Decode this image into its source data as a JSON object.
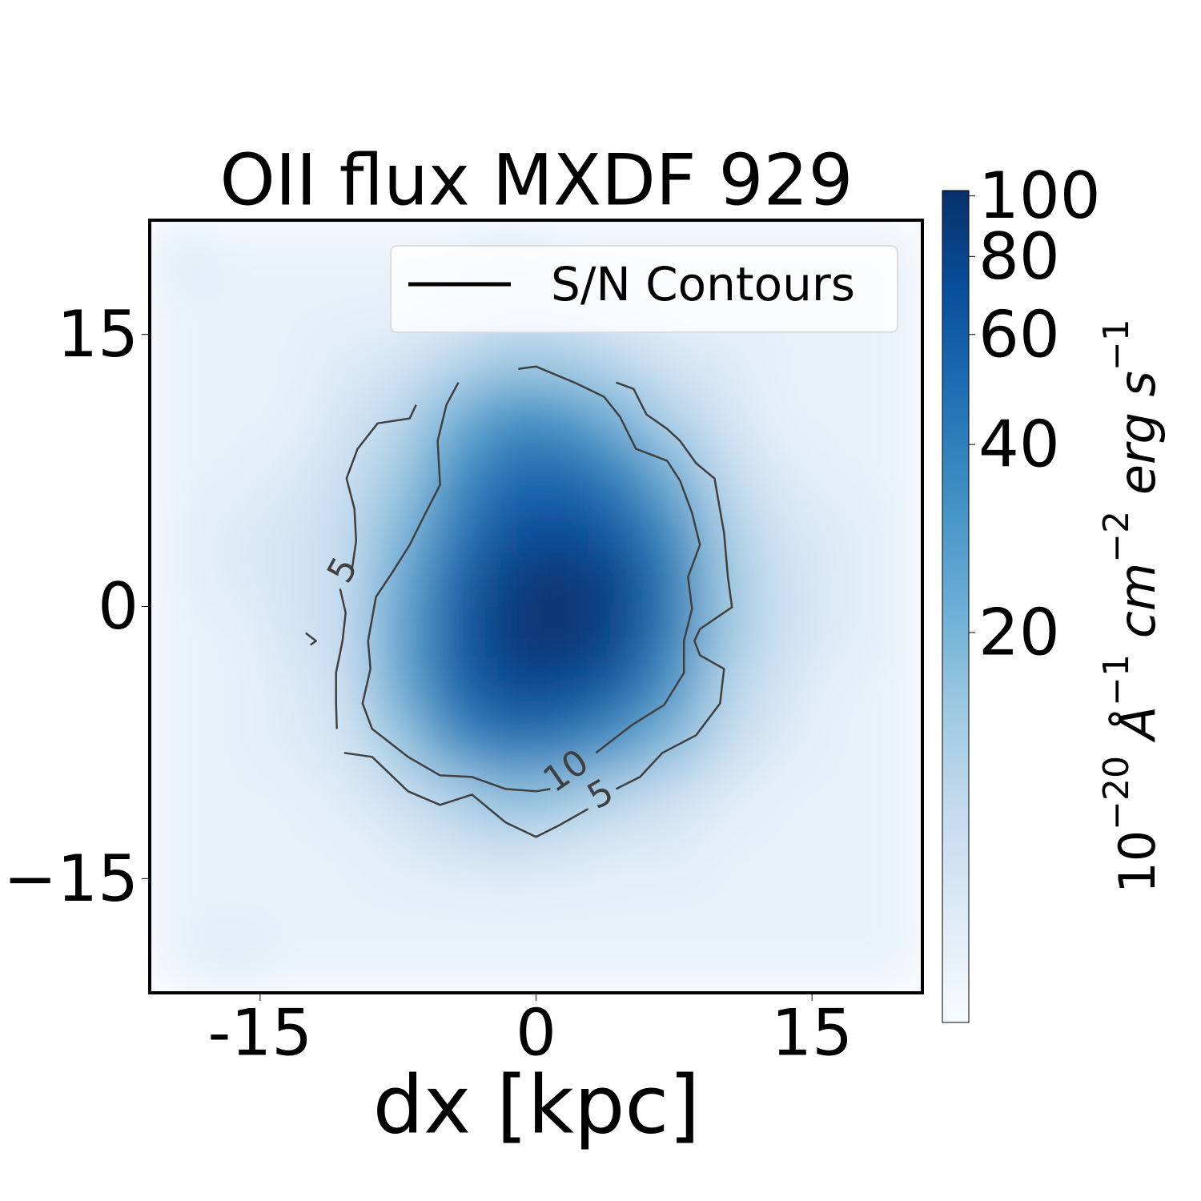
{
  "chart_data": {
    "type": "heatmap",
    "title": "OII flux MXDF 929",
    "xlabel": "dx [kpc]",
    "xlim": [
      -21,
      21
    ],
    "ylim": [
      -21.3,
      21.3
    ],
    "xticks": [
      -15,
      0,
      15
    ],
    "yticks": [
      {
        "value": -15,
        "label": "−15"
      },
      0,
      15
    ],
    "x": [
      -19.5,
      -16.5,
      -13.5,
      -10.5,
      -7.5,
      -4.5,
      -1.5,
      1.5,
      4.5,
      7.5,
      10.5,
      13.5,
      16.5,
      19.5
    ],
    "y": [
      19.5,
      16.5,
      13.5,
      10.5,
      7.5,
      4.5,
      1.5,
      -1.5,
      -4.5,
      -7.5,
      -10.5,
      -13.5,
      -16.5,
      -19.5
    ],
    "z": [
      [
        7,
        6,
        6,
        6,
        6,
        6,
        7,
        6,
        6,
        6,
        6,
        6,
        6,
        6
      ],
      [
        6,
        6,
        6,
        6,
        6,
        7,
        8,
        8,
        7,
        6,
        6,
        6,
        6,
        6
      ],
      [
        6,
        6,
        6,
        7,
        8,
        11,
        15,
        14,
        11,
        8,
        7,
        6,
        6,
        6
      ],
      [
        6,
        6,
        6,
        8,
        11,
        20,
        32,
        30,
        20,
        12,
        8,
        6,
        6,
        6
      ],
      [
        6,
        6,
        7,
        9,
        14,
        30,
        48,
        50,
        38,
        20,
        10,
        7,
        6,
        6
      ],
      [
        6,
        7,
        8,
        10,
        18,
        40,
        65,
        72,
        58,
        32,
        13,
        8,
        7,
        6
      ],
      [
        6,
        7,
        8,
        10,
        22,
        52,
        85,
        95,
        78,
        42,
        15,
        9,
        7,
        6
      ],
      [
        6,
        6,
        8,
        10,
        24,
        58,
        90,
        98,
        80,
        40,
        15,
        9,
        7,
        6
      ],
      [
        6,
        6,
        7,
        9,
        22,
        52,
        75,
        75,
        58,
        30,
        12,
        8,
        6,
        6
      ],
      [
        6,
        6,
        7,
        8,
        15,
        32,
        45,
        42,
        30,
        18,
        10,
        7,
        6,
        6
      ],
      [
        6,
        6,
        6,
        7,
        9,
        13,
        18,
        16,
        12,
        9,
        7,
        6,
        6,
        6
      ],
      [
        6,
        6,
        6,
        6,
        7,
        8,
        9,
        8,
        7,
        7,
        6,
        6,
        6,
        6
      ],
      [
        6,
        6,
        6,
        6,
        6,
        6,
        6,
        6,
        6,
        6,
        6,
        6,
        6,
        6
      ],
      [
        6,
        7,
        6,
        6,
        6,
        6,
        6,
        6,
        6,
        6,
        6,
        6,
        6,
        6
      ]
    ],
    "colormap": [
      "#f7fbff",
      "#deebf7",
      "#c6dbef",
      "#9ecae1",
      "#6baed6",
      "#4292c6",
      "#2171b5",
      "#08519c",
      "#08306b"
    ],
    "clim": [
      4.75,
      102
    ],
    "cbar_scale": "log",
    "cbar_ticks": [
      20,
      40,
      60,
      80,
      100
    ],
    "cbar_label": [
      "10",
      "−20",
      " Å",
      "−1",
      " cm",
      "−2",
      " erg s",
      "−1"
    ],
    "contour_color": "#404040",
    "contours": [
      {
        "level": 10,
        "x": [
          -4.22,
          -4.87,
          -5.35,
          -5.22,
          -6.0,
          -6.87,
          -7.83,
          -8.7,
          -9.13,
          -9.0,
          -9.43,
          -8.91,
          -6.96,
          -5.22,
          -3.48,
          -1.65,
          0,
          0.78,
          null,
          3.26,
          5.22,
          6.96,
          8.04,
          8.04,
          8.48,
          8.26,
          8.91,
          8.48,
          7.83,
          7.13,
          5.43,
          4.57,
          3.7,
          2.17,
          0,
          -0.96
        ],
        "y": [
          12.35,
          11.12,
          9.13,
          6.7,
          5.16,
          3.4,
          1.85,
          0.53,
          -1.9,
          -3.44,
          -5.34,
          -6.75,
          -8.29,
          -9.31,
          -9.4,
          -10.06,
          -10.19,
          -10.06,
          null,
          -8.07,
          -6.53,
          -5.43,
          -3.66,
          -1.9,
          -0.13,
          1.63,
          3.4,
          5.16,
          6.93,
          8.03,
          8.69,
          10.45,
          11.56,
          12.31,
          13.23,
          13.1
        ]
      },
      {
        "level": 5,
        "x": [
          -6.52,
          -6.87,
          -8.61,
          -9.7,
          -10.3,
          -9.87,
          -9.78,
          -10.0,
          null,
          -10.65,
          -10.35,
          -10.52,
          -10.87,
          -10.87,
          -10.83,
          null,
          -10.43,
          -8.91,
          -6.96,
          -5.22,
          -3.48,
          -1.65,
          0,
          1.3,
          2.83,
          null,
          4.35,
          5.65,
          6.87,
          8.7,
          10.0,
          10.22,
          8.91,
          8.61,
          8.91,
          10.65,
          10.43,
          10.22,
          9.7,
          8.7,
          7.83,
          7.13,
          6.0,
          5.3,
          4.35,
          null,
          -12.52,
          -11.96,
          -12.26
        ],
        "y": [
          11.12,
          10.37,
          10.1,
          8.69,
          7.06,
          5.38,
          3.62,
          2.07,
          null,
          0.97,
          -0.35,
          -1.9,
          -3.66,
          -5.34,
          -6.75,
          null,
          -8.07,
          -8.29,
          -10.19,
          -10.94,
          -10.37,
          -11.91,
          -12.7,
          -12.04,
          -11.16,
          null,
          -10.06,
          -9.4,
          -8.07,
          -7.1,
          -5.34,
          -3.44,
          -2.69,
          -1.9,
          -1.24,
          -0.04,
          1.63,
          4.06,
          7.06,
          7.9,
          9.13,
          9.79,
          10.59,
          12.0,
          12.35,
          null,
          -1.46,
          -1.9,
          -2.12
        ]
      }
    ],
    "legend": {
      "loc": "upper right",
      "entries": [
        "S/N Contours"
      ]
    }
  }
}
